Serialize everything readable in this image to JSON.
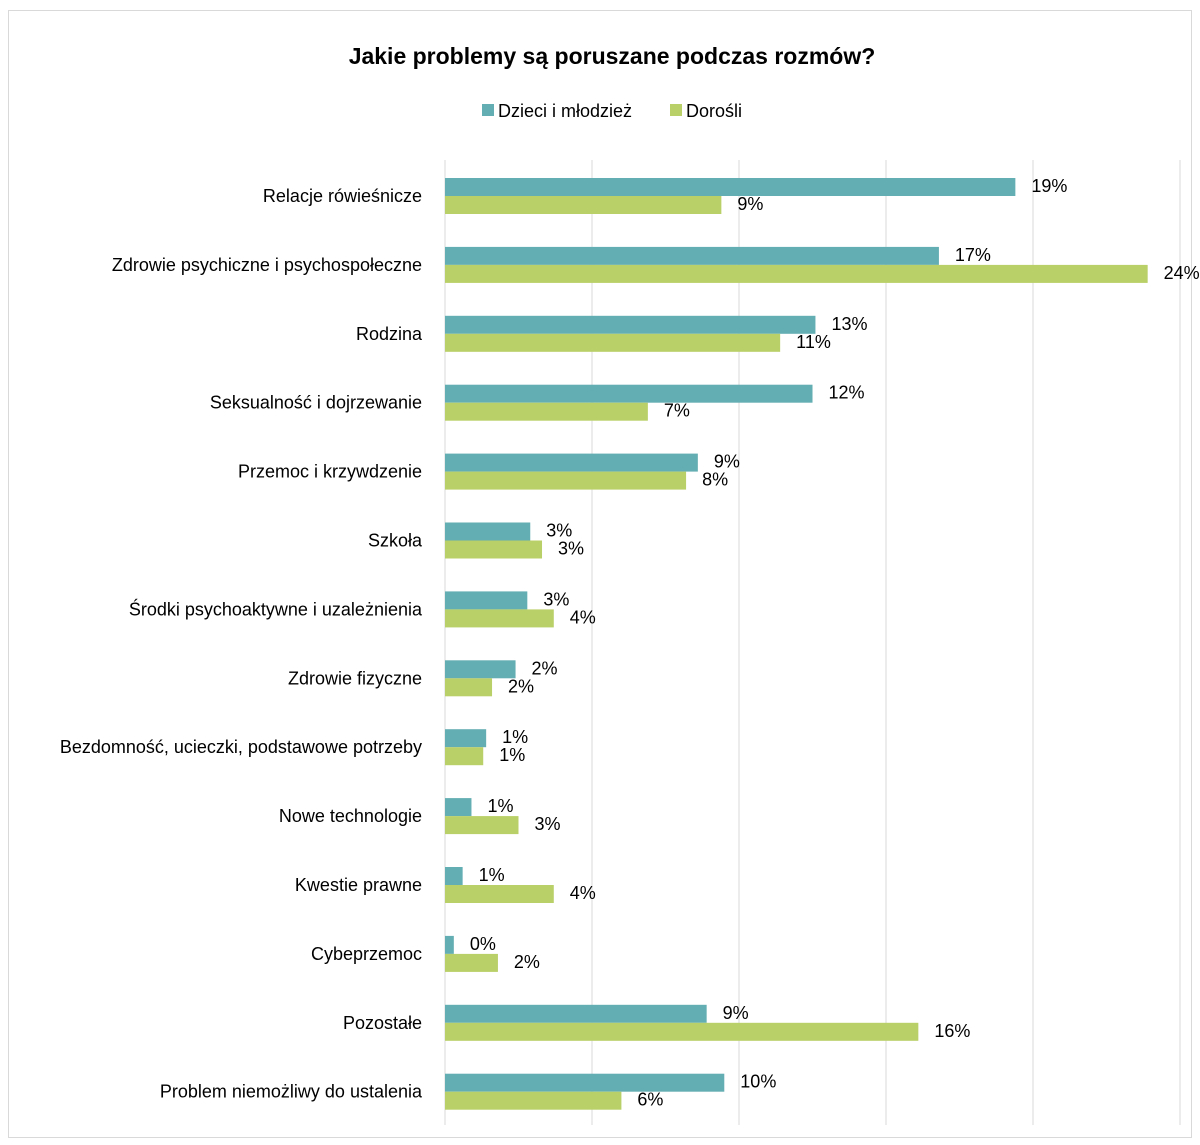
{
  "chart_data": {
    "type": "bar",
    "orientation": "horizontal",
    "title": "Jakie problemy są poruszane podczas rozmów?",
    "legend_position": "top",
    "grid": true,
    "xlim": [
      0,
      25
    ],
    "x_tick_step": 5,
    "categories": [
      "Relacje rówieśnicze",
      "Zdrowie psychiczne i psychospołeczne",
      "Rodzina",
      "Seksualność i dojrzewanie",
      "Przemoc i krzywdzenie",
      "Szkoła",
      "Środki psychoaktywne i uzależnienia",
      "Zdrowie fizyczne",
      "Bezdomność, ucieczki, podstawowe potrzeby",
      "Nowe technologie",
      "Kwestie prawne",
      "Cybeprzemoc",
      "Pozostałe",
      "Problem niemożliwy do ustalenia"
    ],
    "series": [
      {
        "name": "Dzieci i młodzież",
        "color": "#63AEB2",
        "values": [
          19.4,
          16.8,
          12.6,
          12.5,
          8.6,
          2.9,
          2.8,
          2.4,
          1.4,
          0.9,
          0.6,
          0.3,
          8.9,
          9.5
        ],
        "labels": [
          "19%",
          "17%",
          "13%",
          "12%",
          "9%",
          "3%",
          "3%",
          "2%",
          "1%",
          "1%",
          "1%",
          "0%",
          "9%",
          "10%"
        ]
      },
      {
        "name": "Dorośli",
        "color": "#B9CF67",
        "values": [
          9.4,
          23.9,
          11.4,
          6.9,
          8.2,
          3.3,
          3.7,
          1.6,
          1.3,
          2.5,
          3.7,
          1.8,
          16.1,
          6.0
        ],
        "labels": [
          "9%",
          "24%",
          "11%",
          "7%",
          "8%",
          "3%",
          "4%",
          "2%",
          "1%",
          "3%",
          "4%",
          "2%",
          "16%",
          "6%"
        ]
      }
    ]
  }
}
